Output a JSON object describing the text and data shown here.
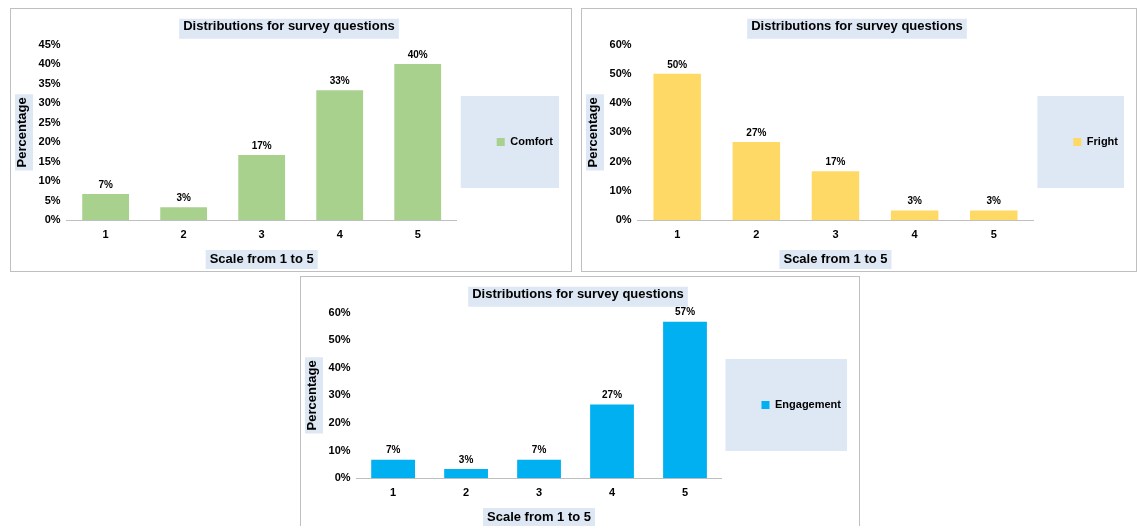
{
  "chart_data": [
    {
      "type": "bar",
      "title": "Distributions for survey questions",
      "xlabel": "Scale from 1 to 5",
      "ylabel": "Percentage",
      "categories": [
        "1",
        "2",
        "3",
        "4",
        "5"
      ],
      "series": [
        {
          "name": "Comfort",
          "color": "#a9d18e",
          "values": [
            6.7,
            3.3,
            16.7,
            33.3,
            40
          ],
          "value_labels": [
            "7%",
            "3%",
            "17%",
            "33%",
            "40%"
          ]
        }
      ],
      "ylim": [
        0,
        45
      ],
      "yticks": [
        {
          "value": 0,
          "label": "0%"
        },
        {
          "value": 5,
          "label": "5%"
        },
        {
          "value": 10,
          "label": "10%"
        },
        {
          "value": 15,
          "label": "15%"
        },
        {
          "value": 20,
          "label": "20%"
        },
        {
          "value": 25,
          "label": "25%"
        },
        {
          "value": 30,
          "label": "30%"
        },
        {
          "value": 35,
          "label": "35%"
        },
        {
          "value": 40,
          "label": "40%"
        },
        {
          "value": 45,
          "label": "45%"
        }
      ],
      "grid": false,
      "legend": "right"
    },
    {
      "type": "bar",
      "title": "Distributions for survey questions",
      "xlabel": "Scale from 1 to 5",
      "ylabel": "Percentage",
      "categories": [
        "1",
        "2",
        "3",
        "4",
        "5"
      ],
      "series": [
        {
          "name": "Fright",
          "color": "#ffd966",
          "values": [
            50,
            26.7,
            16.7,
            3.3,
            3.3
          ],
          "value_labels": [
            "50%",
            "27%",
            "17%",
            "3%",
            "3%"
          ]
        }
      ],
      "ylim": [
        0,
        60
      ],
      "yticks": [
        {
          "value": 0,
          "label": "0%"
        },
        {
          "value": 10,
          "label": "10%"
        },
        {
          "value": 20,
          "label": "20%"
        },
        {
          "value": 30,
          "label": "30%"
        },
        {
          "value": 40,
          "label": "40%"
        },
        {
          "value": 50,
          "label": "50%"
        },
        {
          "value": 60,
          "label": "60%"
        }
      ],
      "grid": false,
      "legend": "right"
    },
    {
      "type": "bar",
      "title": "Distributions for survey questions",
      "xlabel": "Scale from 1 to 5",
      "ylabel": "Percentage",
      "categories": [
        "1",
        "2",
        "3",
        "4",
        "5"
      ],
      "series": [
        {
          "name": "Engagement",
          "color": "#00b0f0",
          "values": [
            6.7,
            3.3,
            6.7,
            26.7,
            56.7
          ],
          "value_labels": [
            "7%",
            "3%",
            "7%",
            "27%",
            "57%"
          ]
        }
      ],
      "ylim": [
        0,
        60
      ],
      "yticks": [
        {
          "value": 0,
          "label": "0%"
        },
        {
          "value": 10,
          "label": "10%"
        },
        {
          "value": 20,
          "label": "20%"
        },
        {
          "value": 30,
          "label": "30%"
        },
        {
          "value": 40,
          "label": "40%"
        },
        {
          "value": 50,
          "label": "50%"
        },
        {
          "value": 60,
          "label": "60%"
        }
      ],
      "grid": false,
      "legend": "right"
    }
  ]
}
